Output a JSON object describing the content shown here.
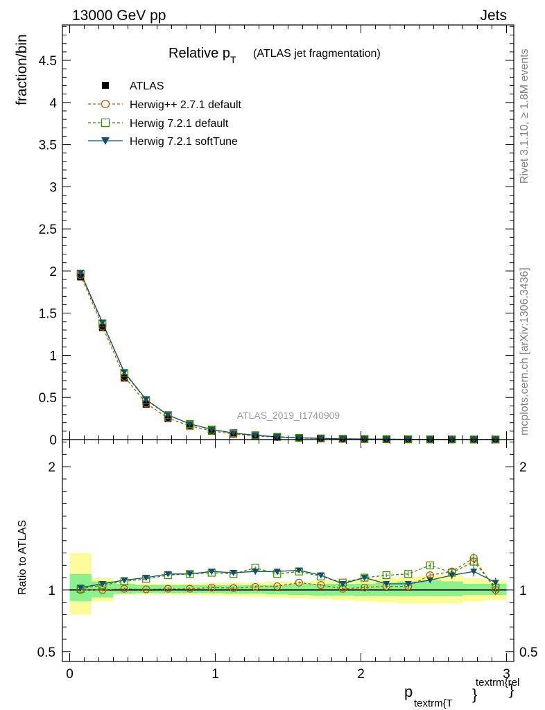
{
  "header": {
    "left": "13000 GeV pp",
    "right": "Jets"
  },
  "side_text": {
    "rivet": "Rivet 3.1.10, ≥ 1.8M events",
    "mcplots": "mcplots.cern.ch [arXiv:1306.3436]"
  },
  "watermark": "ATLAS_2019_I1740909",
  "title": {
    "main": "Relative p",
    "sub": "T",
    "paren": "(ATLAS jet fragmentation)"
  },
  "ylabel_main": "fraction/bin",
  "ylabel_ratio": "Ratio to ATLAS",
  "xlabel": {
    "p": "p",
    "sub": "textrm{T",
    "brace": "}",
    "sup": "textrm{rel",
    "brace2": "}"
  },
  "colors": {
    "atlas": "#000000",
    "herwigpp": "#b35900",
    "herwig721": "#3a8a00",
    "softtune": "#134f6a",
    "band_inner": "#8cf08c",
    "band_outer": "#fbfb9a"
  },
  "chart_data": [
    {
      "type": "scatter",
      "title": "Relative pT (ATLAS jet fragmentation)",
      "ylabel": "fraction/bin",
      "xlim": [
        -0.05,
        3.05
      ],
      "ylim": [
        0,
        4.92
      ],
      "yticks": [
        "0",
        "0.5",
        "1",
        "1.5",
        "2",
        "2.5",
        "3",
        "3.5",
        "4",
        "4.5"
      ],
      "x": [
        0.075,
        0.225,
        0.375,
        0.525,
        0.675,
        0.825,
        0.975,
        1.125,
        1.275,
        1.425,
        1.575,
        1.725,
        1.875,
        2.025,
        2.175,
        2.325,
        2.475,
        2.625,
        2.775,
        2.925
      ],
      "series": [
        {
          "name": "ATLAS",
          "values": [
            1.93,
            1.33,
            0.73,
            0.42,
            0.25,
            0.16,
            0.1,
            0.065,
            0.043,
            0.028,
            0.018,
            0.012,
            0.008,
            0.006,
            0.004,
            0.003,
            0.002,
            0.0015,
            0.001,
            0.0008
          ]
        },
        {
          "name": "Herwig++ 2.7.1 default",
          "values": [
            1.95,
            1.34,
            0.745,
            0.43,
            0.255,
            0.162,
            0.103,
            0.066,
            0.044,
            0.029,
            0.019,
            0.012,
            0.008,
            0.006,
            0.004,
            0.003,
            0.002,
            0.0015,
            0.001,
            0.0008
          ]
        },
        {
          "name": "Herwig 7.2.1 default",
          "values": [
            1.97,
            1.38,
            0.79,
            0.47,
            0.29,
            0.185,
            0.12,
            0.077,
            0.051,
            0.033,
            0.021,
            0.014,
            0.009,
            0.007,
            0.005,
            0.003,
            0.002,
            0.0016,
            0.001,
            0.0008
          ]
        },
        {
          "name": "Herwig 7.2.1 softTune",
          "values": [
            1.98,
            1.39,
            0.8,
            0.475,
            0.292,
            0.186,
            0.121,
            0.077,
            0.051,
            0.033,
            0.021,
            0.014,
            0.009,
            0.007,
            0.005,
            0.003,
            0.002,
            0.0016,
            0.001,
            0.0008
          ]
        }
      ]
    },
    {
      "type": "scatter",
      "ylabel": "Ratio to ATLAS",
      "xlabel": "ptextrm{T}^{textrm{rel}}",
      "xlim": [
        -0.05,
        3.05
      ],
      "ylim": [
        0.42,
        2.22
      ],
      "yticks": [
        "0.5",
        "1",
        "2"
      ],
      "xticks": [
        "0",
        "1",
        "2",
        "3"
      ],
      "x": [
        0.075,
        0.225,
        0.375,
        0.525,
        0.675,
        0.825,
        0.975,
        1.125,
        1.275,
        1.425,
        1.575,
        1.725,
        1.875,
        2.025,
        2.175,
        2.325,
        2.475,
        2.625,
        2.775,
        2.925
      ],
      "x_edges": [
        0,
        0.15,
        0.3,
        0.45,
        0.6,
        0.75,
        0.9,
        1.05,
        1.2,
        1.35,
        1.5,
        1.65,
        1.8,
        1.95,
        2.1,
        2.25,
        2.4,
        2.55,
        2.7,
        2.85,
        3.0
      ],
      "band_inner": {
        "lo": [
          0.91,
          0.94,
          0.97,
          0.975,
          0.975,
          0.975,
          0.975,
          0.97,
          0.97,
          0.965,
          0.96,
          0.955,
          0.955,
          0.95,
          0.95,
          0.95,
          0.95,
          0.95,
          0.96,
          0.96
        ],
        "hi": [
          1.13,
          1.07,
          1.05,
          1.04,
          1.04,
          1.04,
          1.04,
          1.04,
          1.04,
          1.04,
          1.05,
          1.05,
          1.05,
          1.05,
          1.06,
          1.07,
          1.08,
          1.07,
          1.05,
          1.05
        ]
      },
      "band_outer": {
        "lo": [
          0.8,
          0.91,
          0.96,
          0.965,
          0.965,
          0.96,
          0.955,
          0.95,
          0.945,
          0.94,
          0.935,
          0.93,
          0.92,
          0.91,
          0.9,
          0.89,
          0.89,
          0.89,
          0.91,
          0.92
        ],
        "hi": [
          1.3,
          1.1,
          1.06,
          1.05,
          1.05,
          1.05,
          1.06,
          1.06,
          1.06,
          1.07,
          1.07,
          1.08,
          1.08,
          1.09,
          1.1,
          1.11,
          1.12,
          1.12,
          1.1,
          1.08
        ]
      },
      "series": [
        {
          "name": "Herwig++ 2.7.1 default",
          "values": [
            1.0,
            1.0,
            1.01,
            1.005,
            1.01,
            1.01,
            1.02,
            1.015,
            1.025,
            1.03,
            1.06,
            1.04,
            1.01,
            1.02,
            1.03,
            1.03,
            1.12,
            1.15,
            1.26,
            1.0
          ],
          "err": [
            0.01,
            0.01,
            0.01,
            0.01,
            0.01,
            0.01,
            0.01,
            0.01,
            0.01,
            0.01,
            0.01,
            0.01,
            0.01,
            0.015,
            0.015,
            0.02,
            0.02,
            0.03,
            0.04,
            0.04
          ]
        },
        {
          "name": "Herwig 7.2.1 default",
          "values": [
            1.01,
            1.04,
            1.07,
            1.09,
            1.12,
            1.13,
            1.14,
            1.13,
            1.18,
            1.13,
            1.15,
            1.11,
            1.06,
            1.1,
            1.12,
            1.13,
            1.2,
            1.14,
            1.23,
            1.02
          ],
          "err": [
            0.01,
            0.01,
            0.01,
            0.01,
            0.01,
            0.01,
            0.01,
            0.01,
            0.01,
            0.01,
            0.01,
            0.01,
            0.015,
            0.015,
            0.015,
            0.02,
            0.02,
            0.03,
            0.04,
            0.04
          ]
        },
        {
          "name": "Herwig 7.2.1 softTune",
          "values": [
            1.02,
            1.05,
            1.08,
            1.1,
            1.13,
            1.13,
            1.15,
            1.14,
            1.15,
            1.15,
            1.16,
            1.12,
            1.05,
            1.1,
            1.05,
            1.05,
            1.08,
            1.12,
            1.15,
            1.06
          ],
          "err": [
            0.01,
            0.01,
            0.01,
            0.01,
            0.01,
            0.01,
            0.01,
            0.01,
            0.01,
            0.01,
            0.01,
            0.01,
            0.015,
            0.015,
            0.015,
            0.02,
            0.02,
            0.03,
            0.04,
            0.04
          ]
        }
      ]
    }
  ],
  "legend": [
    {
      "label": "ATLAS"
    },
    {
      "label": "Herwig++ 2.7.1 default"
    },
    {
      "label": "Herwig 7.2.1 default"
    },
    {
      "label": "Herwig 7.2.1 softTune"
    }
  ]
}
